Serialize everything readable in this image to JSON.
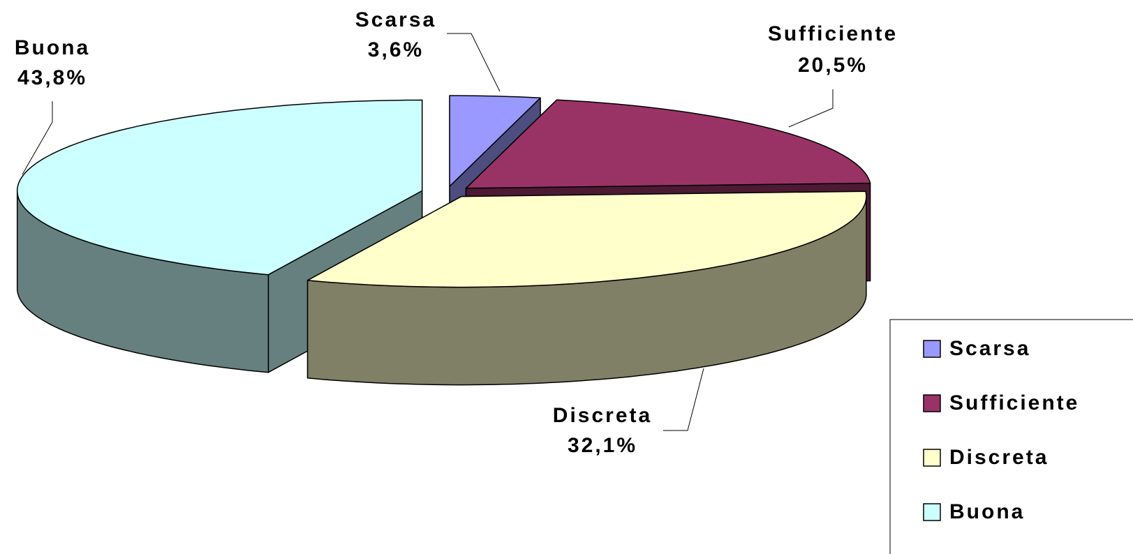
{
  "chart_data": {
    "type": "pie",
    "categories": [
      "Scarsa",
      "Sufficiente",
      "Discreta",
      "Buona"
    ],
    "values": [
      3.6,
      20.5,
      32.1,
      43.8
    ],
    "value_labels": [
      "3,6%",
      "20,5%",
      "32,1%",
      "43,8%"
    ],
    "colors": [
      "#9999ff",
      "#993366",
      "#ffffcc",
      "#ccffff"
    ],
    "legend": "right"
  }
}
